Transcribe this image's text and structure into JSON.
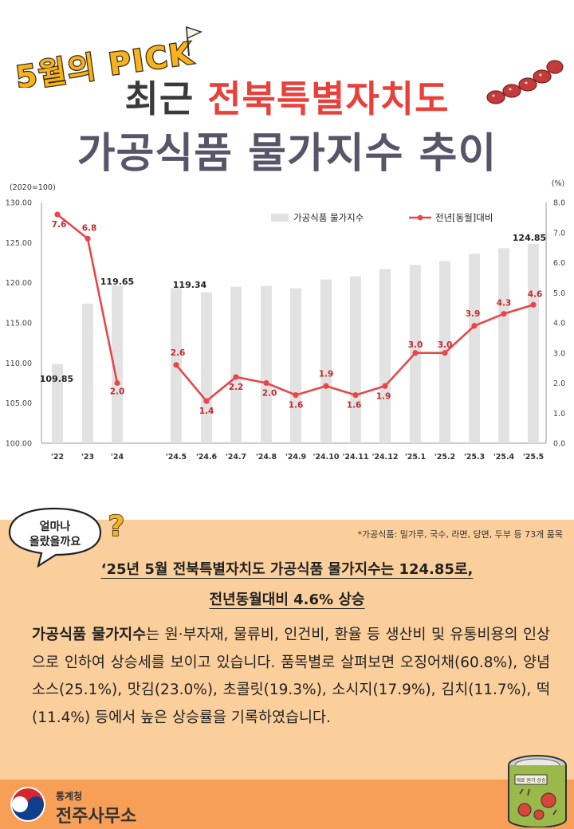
{
  "header": {
    "badge": "5월의 PICK",
    "title_prefix": "최근 ",
    "title_highlight": "전북특별자치도",
    "title_line2": "가공식품 물가지수 추이"
  },
  "chart_data": {
    "type": "bar+line",
    "left_axis_unit": "(2020=100)",
    "right_axis_unit": "(%)",
    "left_ylim": [
      100,
      130
    ],
    "left_ticks": [
      "100.00",
      "105.00",
      "110.00",
      "115.00",
      "120.00",
      "125.00",
      "130.00"
    ],
    "right_ylim": [
      0,
      8
    ],
    "right_ticks": [
      "0.0",
      "1.0",
      "2.0",
      "3.0",
      "4.0",
      "5.0",
      "6.0",
      "7.0",
      "8.0"
    ],
    "categories": [
      "'22",
      "'23",
      "'24",
      "'24.5",
      "'24.6",
      "'24.7",
      "'24.8",
      "'24.9",
      "'24.10",
      "'24.11",
      "'24.12",
      "'25.1",
      "'25.2",
      "'25.3",
      "'25.4",
      "'25.5"
    ],
    "series": [
      {
        "name": "가공식품 물가지수",
        "kind": "bar",
        "color": "#e2e2e2",
        "values": [
          109.85,
          117.4,
          119.65,
          119.34,
          118.8,
          119.5,
          119.6,
          119.3,
          120.4,
          120.8,
          121.7,
          122.2,
          122.7,
          123.6,
          124.3,
          124.85
        ],
        "labels": [
          "109.85",
          "",
          "119.65",
          "119.34",
          "",
          "",
          "",
          "",
          "",
          "",
          "",
          "",
          "",
          "",
          "",
          "124.85"
        ]
      },
      {
        "name": "전년[동월]대비",
        "kind": "line",
        "color": "#e8474a",
        "values": [
          7.6,
          6.8,
          2.0,
          2.6,
          1.4,
          2.2,
          2.0,
          1.6,
          1.9,
          1.6,
          1.9,
          3.0,
          3.0,
          3.9,
          4.3,
          4.6
        ],
        "labels": [
          "7.6",
          "6.8",
          "2.0",
          "2.6",
          "1.4",
          "2.2",
          "2.0",
          "1.6",
          "1.9",
          "1.6",
          "1.9",
          "3.0",
          "3.0",
          "3.9",
          "4.3",
          "4.6"
        ]
      }
    ]
  },
  "bubble": {
    "line1": "얼마나",
    "line2": "올랐을까요"
  },
  "footnote": "*가공식품: 밀가루, 국수, 라면, 당면, 두부 등 73개 품목",
  "headline": {
    "line1": "‘25년 5월 전북특별자치도 가공식품 물가지수는 124.85로,",
    "line2": "전년동월대비 4.6% 상승"
  },
  "body": {
    "bold": "가공식품 물가지수",
    "text": "는 원·부자재, 물류비, 인건비, 환율 등 생산비 및 유통비용의 인상으로 인하여 상승세를 보이고 있습니다. 품목별로 살펴보면 오징어채(60.8%), 양념소스(25.1%), 맛김(23.0%), 초콜릿(19.3%), 소시지(17.9%), 김치(11.7%), 떡(11.4%) 등에서 높은 상승률을 기록하였습니다."
  },
  "footer": {
    "org_small": "통계청",
    "org_big": "전주사무소",
    "can_label": "재료 원가 상승"
  }
}
